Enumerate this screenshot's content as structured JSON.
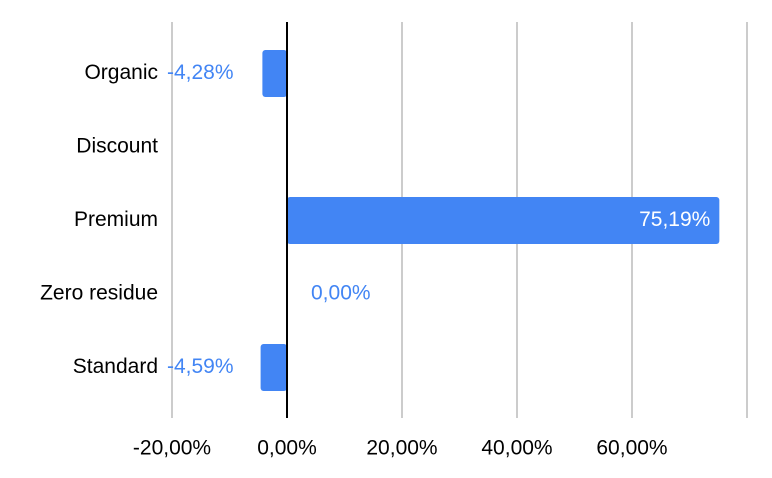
{
  "chart_data": {
    "type": "bar",
    "orientation": "horizontal",
    "categories": [
      "Organic",
      "Discount",
      "Premium",
      "Zero residue",
      "Standard"
    ],
    "values": [
      -4.28,
      null,
      75.19,
      0.0,
      -4.59
    ],
    "data_labels": [
      "-4,28%",
      "",
      "75,19%",
      "0,00%",
      "-4,59%"
    ],
    "xlim": [
      -20,
      80
    ],
    "x_ticks": [
      -20,
      0,
      20,
      40,
      60
    ],
    "x_tick_labels": [
      "-20,00%",
      "0,00%",
      "20,00%",
      "40,00%",
      "60,00%"
    ],
    "grid": true,
    "bar_color": "#4285f4",
    "axis_color": "#000000",
    "grid_color": "#cccccc"
  }
}
